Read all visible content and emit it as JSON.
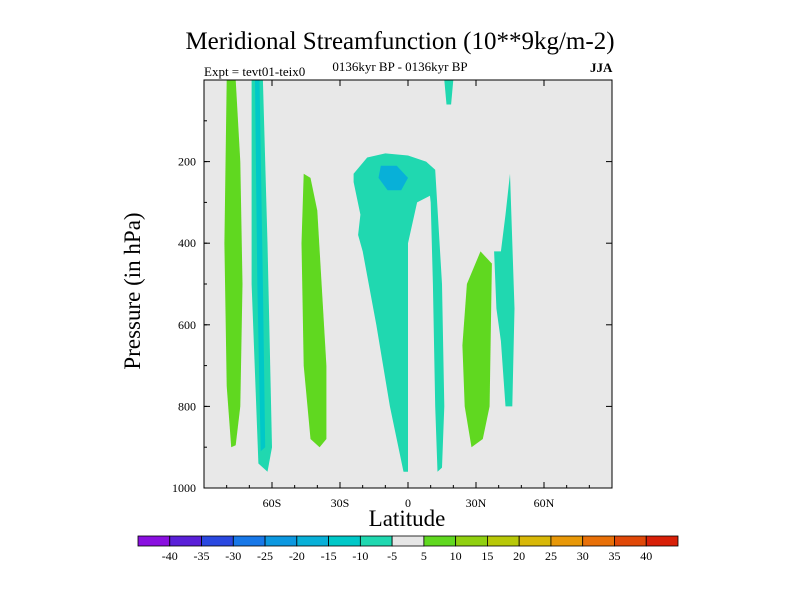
{
  "chart_data": {
    "type": "heatmap",
    "title": "Meridional Streamfunction (10**9kg/m-2)",
    "subtitle_left": "Expt = tevt01-teix0",
    "subtitle_center": "0136kyr BP - 0136kyr BP",
    "subtitle_right": "JJA",
    "xlabel": "Latitude",
    "ylabel": "Pressure (in hPa)",
    "xlim": [
      -90,
      90
    ],
    "ylim": [
      1000,
      0
    ],
    "x_ticks": [
      {
        "value": -60,
        "label": "60S"
      },
      {
        "value": -30,
        "label": "30S"
      },
      {
        "value": 0,
        "label": "0"
      },
      {
        "value": 30,
        "label": "30N"
      },
      {
        "value": 60,
        "label": "60N"
      }
    ],
    "y_ticks": [
      {
        "value": 200,
        "label": "200"
      },
      {
        "value": 400,
        "label": "400"
      },
      {
        "value": 600,
        "label": "600"
      },
      {
        "value": 800,
        "label": "800"
      },
      {
        "value": 1000,
        "label": "1000"
      }
    ],
    "background_color": "#e8e8e8",
    "colorbar": {
      "labels": [
        "-40",
        "-35",
        "-30",
        "-25",
        "-20",
        "-15",
        "-10",
        "-5",
        "5",
        "10",
        "15",
        "20",
        "25",
        "30",
        "35",
        "40"
      ],
      "colors": [
        "#8a10e0",
        "#5a20d8",
        "#2a48e0",
        "#1878e8",
        "#0c98e0",
        "#08b0d8",
        "#00c8c8",
        "#20d8b0",
        "#e6e6e6",
        "#60d820",
        "#90d010",
        "#b8c808",
        "#d8b808",
        "#e89808",
        "#e87008",
        "#e04808",
        "#d82008"
      ]
    },
    "regions": [
      {
        "name": "green-band-sh-highlat",
        "value": 7,
        "color": "#60d820",
        "points": [
          [
            -80,
            0
          ],
          [
            -76,
            0
          ],
          [
            -74,
            200
          ],
          [
            -73,
            500
          ],
          [
            -74,
            800
          ],
          [
            -76,
            895
          ],
          [
            -78,
            900
          ],
          [
            -80,
            750
          ],
          [
            -81,
            400
          ]
        ]
      },
      {
        "name": "cyan-band-60s",
        "value": -7,
        "color": "#20d8b0",
        "points": [
          [
            -69,
            0
          ],
          [
            -64,
            0
          ],
          [
            -62,
            400
          ],
          [
            -60,
            900
          ],
          [
            -62,
            960
          ],
          [
            -66,
            940
          ],
          [
            -69,
            500
          ]
        ]
      },
      {
        "name": "blue-band-60s",
        "value": -12,
        "color": "#00c8c8",
        "points": [
          [
            -67.5,
            0
          ],
          [
            -65.5,
            0
          ],
          [
            -64,
            500
          ],
          [
            -63,
            900
          ],
          [
            -65,
            910
          ],
          [
            -66.5,
            500
          ]
        ]
      },
      {
        "name": "green-band-40s",
        "value": 7,
        "color": "#60d820",
        "points": [
          [
            -46,
            230
          ],
          [
            -43,
            240
          ],
          [
            -40,
            320
          ],
          [
            -36,
            700
          ],
          [
            -36,
            880
          ],
          [
            -39,
            900
          ],
          [
            -43,
            880
          ],
          [
            -46,
            700
          ],
          [
            -47,
            400
          ]
        ]
      },
      {
        "name": "cyan-band-eq",
        "value": -7,
        "color": "#20d8b0",
        "points": [
          [
            -24,
            230
          ],
          [
            -18,
            190
          ],
          [
            -10,
            180
          ],
          [
            0,
            185
          ],
          [
            8,
            200
          ],
          [
            12,
            230
          ],
          [
            11,
            280
          ],
          [
            4,
            300
          ],
          [
            0,
            400
          ],
          [
            0,
            700
          ],
          [
            0,
            820
          ],
          [
            0,
            960
          ],
          [
            -2,
            960
          ],
          [
            -8,
            800
          ],
          [
            -14,
            600
          ],
          [
            -18,
            480
          ],
          [
            -20,
            420
          ],
          [
            -22,
            380
          ],
          [
            -21,
            330
          ],
          [
            -24,
            250
          ]
        ]
      },
      {
        "name": "blue-core-eq",
        "value": -15,
        "color": "#08b0d8",
        "points": [
          [
            -12,
            210
          ],
          [
            -5,
            210
          ],
          [
            0,
            240
          ],
          [
            -3,
            270
          ],
          [
            -9,
            270
          ],
          [
            -13,
            240
          ]
        ]
      },
      {
        "name": "cyan-band-15n",
        "value": -7,
        "color": "#20d8b0",
        "points": [
          [
            8,
            200
          ],
          [
            12,
            220
          ],
          [
            15,
            500
          ],
          [
            16,
            800
          ],
          [
            15,
            950
          ],
          [
            13,
            960
          ],
          [
            12,
            800
          ],
          [
            11,
            500
          ],
          [
            10,
            300
          ]
        ]
      },
      {
        "name": "cyan-spike-20n",
        "value": -7,
        "color": "#20d8b0",
        "points": [
          [
            16,
            0
          ],
          [
            20,
            0
          ],
          [
            19,
            60
          ],
          [
            17,
            60
          ]
        ]
      },
      {
        "name": "green-band-30n",
        "value": 7,
        "color": "#60d820",
        "points": [
          [
            26,
            500
          ],
          [
            32,
            420
          ],
          [
            37,
            450
          ],
          [
            36,
            800
          ],
          [
            33,
            880
          ],
          [
            28,
            900
          ],
          [
            25,
            800
          ],
          [
            24,
            650
          ]
        ]
      },
      {
        "name": "cyan-band-45n",
        "value": -7,
        "color": "#20d8b0",
        "points": [
          [
            38,
            420
          ],
          [
            41,
            420
          ],
          [
            43,
            330
          ],
          [
            45,
            230
          ],
          [
            47,
            560
          ],
          [
            46,
            800
          ],
          [
            43,
            800
          ],
          [
            41,
            640
          ],
          [
            39,
            560
          ]
        ]
      }
    ]
  }
}
